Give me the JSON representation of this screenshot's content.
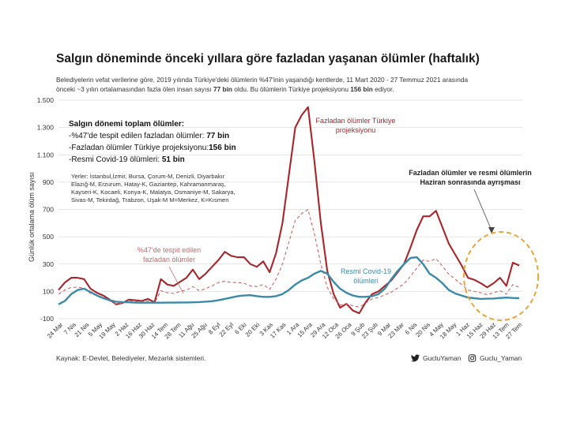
{
  "header": {
    "title": "Salgın döneminde önceki yıllara göre fazladan yaşanan ölümler (haftalık)",
    "subtitle_line1": "Belediyelerin vefat verilerine göre, 2019 yılında Türkiye'deki ölümlerin %47'inin yaşandığı kentlerde, 11 Mart 2020 - 27 Temmuz 2021 arasında",
    "subtitle_line2_a": "önceki ~3 yılın ortalamasından fazla ölen insan sayısı ",
    "subtitle_line2_b": "77 bin",
    "subtitle_line2_c": " oldu. Bu ölümlerin Türkiye projeksiyonu ",
    "subtitle_line2_d": "156 bin",
    "subtitle_line2_e": " ediyor."
  },
  "summary": {
    "heading": "Salgın dönemi toplam ölümler:",
    "lines": [
      {
        "label": "-%47'de tespit edilen fazladan ölümler: ",
        "value": "77 bin"
      },
      {
        "label": "-Fazladan ölümler Türkiye projeksiyonu:",
        "value": "156 bin"
      },
      {
        "label": "-Resmi Covid-19 ölümleri: ",
        "value": "51 bin"
      }
    ]
  },
  "places": [
    "Yerler: İstanbul,İzmir, Bursa, Çorum-M, Denizli, Diyarbakır",
    "Elazığ-M, Erzurum, Hatay-K, Gaziantep, Kahramanmaraş,",
    "Kayseri-K, Kocaeli, Konya-K, Malatya, Osmaniye-M, Sakarya,",
    "Sivas-M, Tekirdağ, Trabzon, Uşak-M M=Merkez, K=Kısmen"
  ],
  "annotations": {
    "turkey_line1": "Fazladan ölümler Türkiye",
    "turkey_line2": "projeksiyonu",
    "excess47_line1": "%47'de tespit edilen",
    "excess47_line2": "fazladan ölümler",
    "covid_line1": "Resmi Covid-19",
    "covid_line2": "ölümleri",
    "divergence_line1": "Fazladan ölümler ve resmi ölümlerin",
    "divergence_line2": "Haziran sonrasında ayrışması"
  },
  "footer": {
    "source": "Kaynak: E-Devlet, Belediyeler, Mezarlık sistemleri.",
    "twitter": "GucluYaman",
    "instagram": "Guclu_Yaman"
  },
  "colors": {
    "turkey": "#a8262b",
    "excess47": "#c9676b",
    "covid": "#3a8aa8",
    "circle": "#e8a73a",
    "grid": "#cccccc"
  },
  "chart_data": {
    "type": "line",
    "ylabel": "Günlük ortalama ölüm sayısı",
    "ylim": [
      -100,
      1500
    ],
    "yticks": [
      -100,
      100,
      300,
      500,
      700,
      900,
      1100,
      1300,
      1500
    ],
    "ytick_labels": [
      "-100",
      "100",
      "300",
      "500",
      "700",
      "900",
      "1.100",
      "1.300",
      "1.500"
    ],
    "x_tick_labels": [
      "24 Mar",
      "7 Nis",
      "21 Nis",
      "5 May",
      "19 May",
      "2 Haz",
      "16 Haz",
      "30 Haz",
      "14 Tem",
      "28 Tem",
      "11 Ağu",
      "25 Ağu",
      "8 Eyl",
      "22 Eyl",
      "6 Eki",
      "20 Eki",
      "3 Kas",
      "17 Kas",
      "1 Ara",
      "15 Ara",
      "29 Ara",
      "12 Oca",
      "26 Oca",
      "9 Şub",
      "23 Şub",
      "9 Mar",
      "23 Mar",
      "6 Nis",
      "20 Nis",
      "4 May",
      "18 May",
      "1 Haz",
      "15 Haz",
      "29 Haz",
      "13 Tem",
      "27 Tem"
    ],
    "series": [
      {
        "name": "Fazladan ölümler Türkiye projeksiyonu",
        "style": "solid",
        "values": [
          110,
          165,
          200,
          200,
          190,
          120,
          90,
          70,
          40,
          5,
          15,
          40,
          35,
          30,
          45,
          20,
          190,
          150,
          140,
          170,
          200,
          260,
          190,
          230,
          280,
          330,
          390,
          360,
          350,
          350,
          300,
          280,
          320,
          240,
          380,
          600,
          950,
          1300,
          1390,
          1450,
          1050,
          600,
          250,
          80,
          -20,
          10,
          -40,
          -60,
          20,
          80,
          100,
          140,
          180,
          240,
          300,
          420,
          550,
          650,
          650,
          690,
          570,
          450,
          370,
          290,
          200,
          185,
          160,
          130,
          160,
          200,
          140,
          310,
          290
        ],
        "marker_labels": []
      },
      {
        "name": "%47'de tespit edilen fazladan ölümler",
        "style": "dashed",
        "values": [
          80,
          110,
          130,
          130,
          125,
          85,
          70,
          60,
          30,
          10,
          15,
          30,
          25,
          25,
          30,
          15,
          105,
          90,
          85,
          100,
          110,
          135,
          105,
          120,
          140,
          165,
          175,
          165,
          165,
          160,
          140,
          135,
          150,
          115,
          190,
          300,
          460,
          620,
          670,
          700,
          520,
          300,
          130,
          45,
          0,
          10,
          -5,
          -15,
          15,
          45,
          55,
          75,
          95,
          125,
          155,
          210,
          270,
          330,
          320,
          340,
          285,
          225,
          190,
          150,
          110,
          100,
          90,
          75,
          90,
          105,
          80,
          150,
          130
        ]
      },
      {
        "name": "Resmi Covid-19 ölümleri",
        "style": "solid",
        "values": [
          5,
          30,
          80,
          110,
          120,
          95,
          70,
          50,
          35,
          25,
          22,
          20,
          18,
          17,
          17,
          17,
          17,
          18,
          18,
          19,
          19,
          20,
          22,
          25,
          28,
          35,
          45,
          55,
          65,
          70,
          72,
          65,
          60,
          60,
          65,
          80,
          110,
          150,
          180,
          200,
          230,
          250,
          230,
          170,
          120,
          90,
          70,
          60,
          60,
          65,
          80,
          120,
          190,
          250,
          300,
          345,
          350,
          300,
          230,
          200,
          160,
          110,
          85,
          70,
          55,
          50,
          45,
          47,
          48,
          52,
          55,
          52,
          50
        ]
      }
    ]
  }
}
